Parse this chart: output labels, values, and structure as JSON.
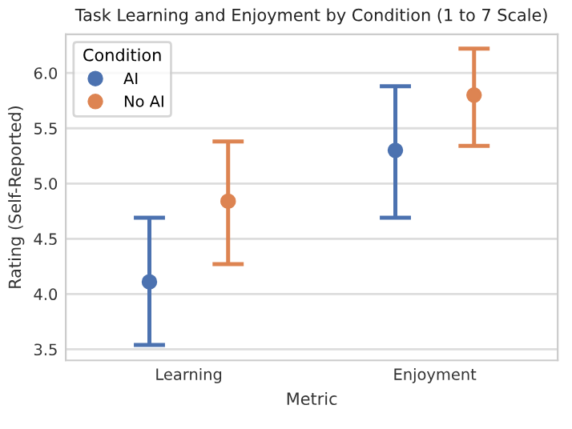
{
  "chart_data": {
    "type": "scatter",
    "title": "Task Learning and Enjoyment by Condition (1 to 7 Scale)",
    "xlabel": "Metric",
    "ylabel": "Rating (Self-Reported)",
    "legend_title": "Condition",
    "categories": [
      "Learning",
      "Enjoyment"
    ],
    "series": [
      {
        "name": "AI",
        "color": "#4c72b0",
        "values": [
          4.11,
          5.3
        ],
        "errors": [
          [
            3.54,
            4.69
          ],
          [
            4.69,
            5.88
          ]
        ]
      },
      {
        "name": "No AI",
        "color": "#dd8452",
        "values": [
          4.84,
          5.8
        ],
        "errors": [
          [
            4.27,
            5.38
          ],
          [
            5.34,
            6.22
          ]
        ]
      }
    ],
    "ylim": [
      3.4,
      6.35
    ],
    "yticks": [
      3.5,
      {
        "value": 4,
        "label": "4.0"
      },
      4.5,
      {
        "value": 5,
        "label": "5.0"
      },
      5.5,
      {
        "value": 6,
        "label": "6.0"
      }
    ],
    "grid": "y",
    "legend": "top left",
    "marker": "circle"
  }
}
